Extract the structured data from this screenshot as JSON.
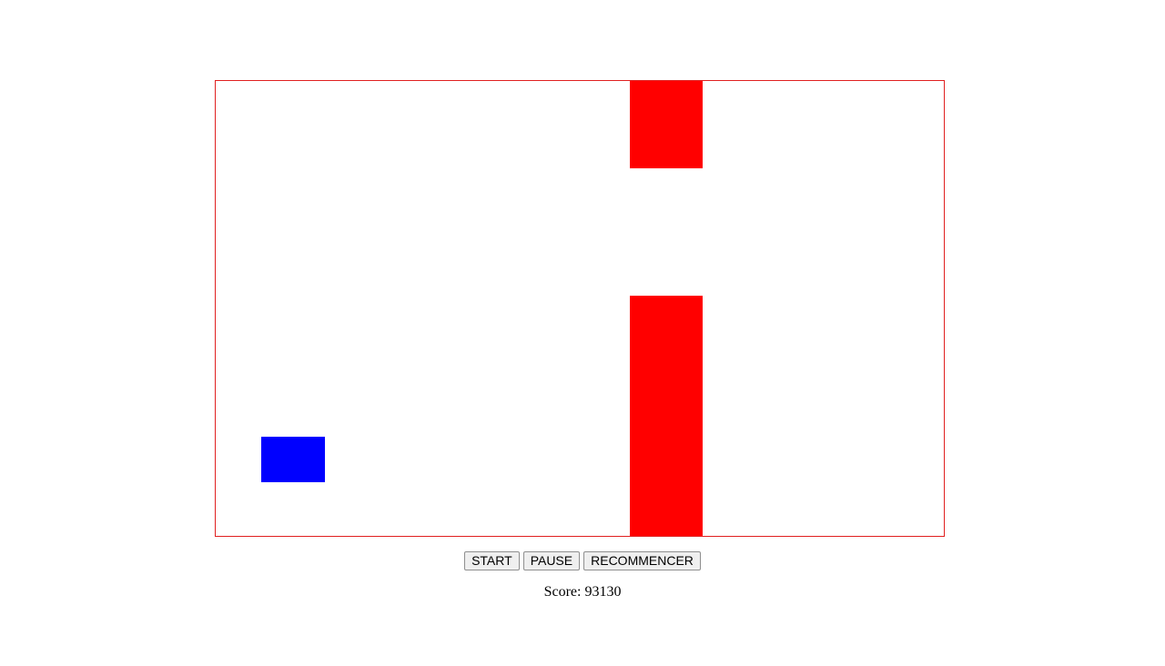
{
  "game": {
    "border_color": "#e02020",
    "pipe_color": "#ff0000",
    "player_color": "#0000ff"
  },
  "controls": {
    "start_label": "START",
    "pause_label": "PAUSE",
    "restart_label": "RECOMMENCER"
  },
  "score": {
    "label": "Score:",
    "value": "93130"
  }
}
